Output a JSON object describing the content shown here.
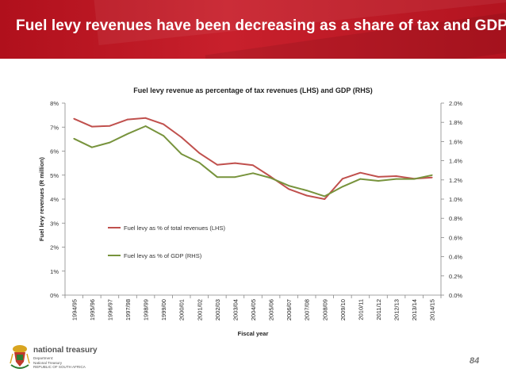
{
  "header": {
    "title": "Fuel levy revenues have been decreasing as a share of tax and GDP"
  },
  "footer": {
    "logo_name": "national treasury",
    "logo_sub": "Department:\nNational Treasury\nREPUBLIC OF SOUTH AFRICA",
    "page_number": "84"
  },
  "colors": {
    "banner": "#c01a26",
    "tax_series": "#c0504d",
    "gdp_series": "#77933c"
  },
  "chart_data": {
    "type": "line",
    "title": "Fuel levy revenue as percentage of tax revenues (LHS) and GDP (RHS)",
    "xlabel": "Fiscal year",
    "ylabel": "Fuel levy revenues (R million)",
    "categories": [
      "1994/95",
      "1995/96",
      "1996/97",
      "1997/98",
      "1998/99",
      "1999/00",
      "2000/01",
      "2001/02",
      "2002/03",
      "2003/04",
      "2004/05",
      "2005/06",
      "2006/07",
      "2007/08",
      "2008/09",
      "2009/10",
      "2010/11",
      "2011/12",
      "2012/13",
      "2013/14",
      "2014/15"
    ],
    "y_left": {
      "ylim": [
        0,
        8
      ],
      "ticks": [
        "0%",
        "1%",
        "2%",
        "3%",
        "4%",
        "5%",
        "6%",
        "7%",
        "8%"
      ]
    },
    "y_right": {
      "ylim": [
        0,
        2.0
      ],
      "ticks": [
        "0.0%",
        "0.2%",
        "0.4%",
        "0.6%",
        "0.8%",
        "1.0%",
        "1.2%",
        "1.4%",
        "1.6%",
        "1.8%",
        "2.0%"
      ]
    },
    "grid": false,
    "legend_position": "center-left",
    "series": [
      {
        "name": "Fuel levy as % of total revenues (LHS)",
        "axis": "left",
        "values": [
          7.35,
          7.02,
          7.05,
          7.32,
          7.38,
          7.12,
          6.58,
          5.92,
          5.43,
          5.5,
          5.41,
          4.93,
          4.42,
          4.15,
          4.0,
          4.85,
          5.1,
          4.93,
          4.96,
          4.85,
          4.9
        ]
      },
      {
        "name": "Fuel levy as % of GDP (RHS)",
        "axis": "right",
        "values": [
          1.63,
          1.54,
          1.59,
          1.68,
          1.76,
          1.66,
          1.47,
          1.38,
          1.23,
          1.23,
          1.27,
          1.22,
          1.14,
          1.09,
          1.03,
          1.13,
          1.21,
          1.19,
          1.21,
          1.21,
          1.25
        ]
      }
    ]
  }
}
